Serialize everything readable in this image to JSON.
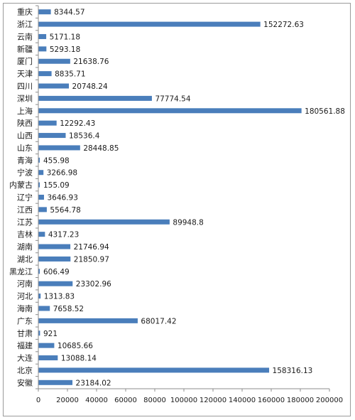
{
  "chart_data": {
    "type": "bar",
    "orientation": "horizontal",
    "title": "",
    "xlabel": "",
    "ylabel": "",
    "xlim": [
      0,
      200000
    ],
    "xticks": [
      0,
      20000,
      40000,
      60000,
      80000,
      100000,
      120000,
      140000,
      160000,
      180000,
      200000
    ],
    "grid": false,
    "legend": "none",
    "bar_color": "#4a7ebb",
    "categories": [
      "重庆",
      "浙江",
      "云南",
      "新疆",
      "厦门",
      "天津",
      "四川",
      "深圳",
      "上海",
      "陕西",
      "山西",
      "山东",
      "青海",
      "宁波",
      "内蒙古",
      "辽宁",
      "江西",
      "江苏",
      "吉林",
      "湖南",
      "湖北",
      "黑龙江",
      "河南",
      "河北",
      "海南",
      "广东",
      "甘肃",
      "福建",
      "大连",
      "北京",
      "安徽"
    ],
    "values": [
      8344.57,
      152272.63,
      5171.18,
      5293.18,
      21638.76,
      8835.71,
      20748.24,
      77774.54,
      180561.88,
      12292.43,
      18536.4,
      28448.85,
      455.98,
      3266.98,
      155.09,
      3646.93,
      5564.78,
      89948.8,
      4317.23,
      21746.94,
      21850.97,
      606.49,
      23302.96,
      1313.83,
      7658.52,
      68017.42,
      921,
      10685.66,
      13088.14,
      158316.13,
      23184.02
    ],
    "value_labels": [
      "8344.57",
      "152272.63",
      "5171.18",
      "5293.18",
      "21638.76",
      "8835.71",
      "20748.24",
      "77774.54",
      "180561.88",
      "12292.43",
      "18536.4",
      "28448.85",
      "455.98",
      "3266.98",
      "155.09",
      "3646.93",
      "5564.78",
      "89948.8",
      "4317.23",
      "21746.94",
      "21850.97",
      "606.49",
      "23302.96",
      "1313.83",
      "7658.52",
      "68017.42",
      "921",
      "10685.66",
      "13088.14",
      "158316.13",
      "23184.02"
    ]
  }
}
